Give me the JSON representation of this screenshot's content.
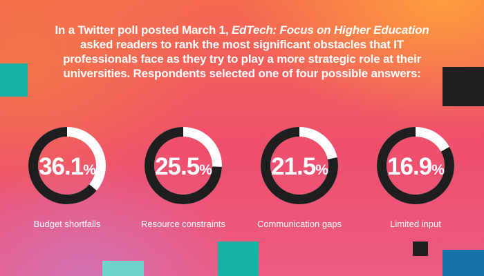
{
  "headline": {
    "part1": "In a Twitter poll posted March 1, ",
    "publication": "EdTech: Focus on Higher Education",
    "part2": " asked readers to rank the most significant obstacles that IT professionals face as they try to play a more strategic role at their universities. Respondents selected one of four possible answers:"
  },
  "colors": {
    "ring_track": "#ffffff",
    "ring_fill": "#1e1e1e",
    "teal": "#14b3a5",
    "light_teal": "#6fd3cc",
    "dark": "#1f1f1f",
    "blue": "#1673a7"
  },
  "chart_data": {
    "type": "pie",
    "unit": "%",
    "categories": [
      "Budget shortfalls",
      "Resource constraints",
      "Communication gaps",
      "Limited input"
    ],
    "values": [
      36.1,
      25.5,
      21.5,
      16.9
    ],
    "labels": [
      "36.1",
      "25.5",
      "21.5",
      "16.9"
    ]
  }
}
